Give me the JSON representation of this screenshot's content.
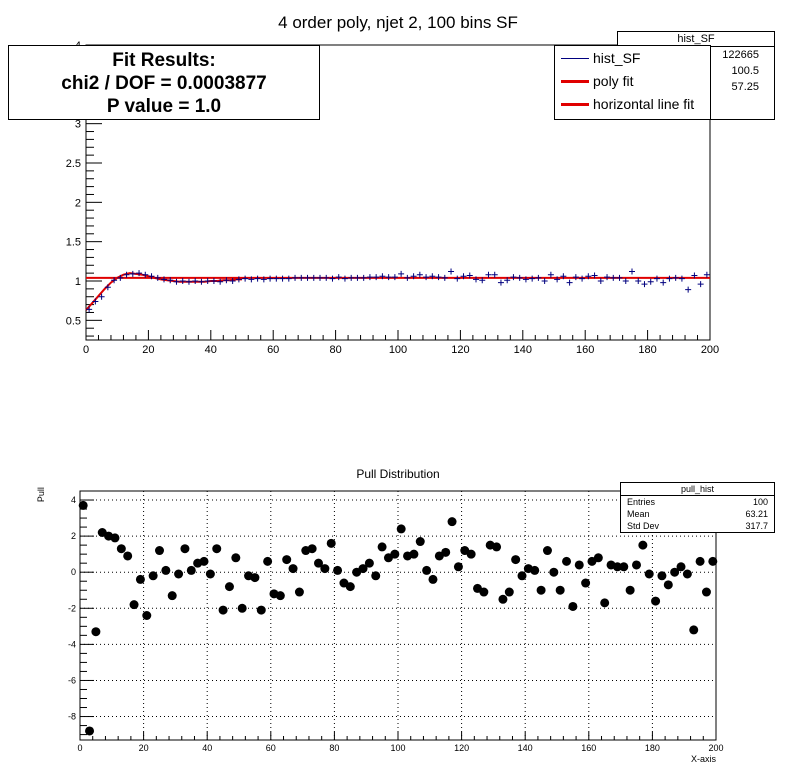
{
  "top_title": "4 order poly, njet 2, 100 bins SF",
  "fit_box": {
    "line1": "Fit Results:",
    "line2": "chi2 / DOF = 0.0003877",
    "line3": "P value = 1.0"
  },
  "legend": [
    {
      "label": "hist_SF",
      "color": "#00007f"
    },
    {
      "label": "poly fit",
      "color": "#e00000"
    },
    {
      "label": "horizontal line fit",
      "color": "#e00000"
    }
  ],
  "stats_top": {
    "title": "hist_SF",
    "values": [
      "122665",
      "100.5",
      "57.25"
    ]
  },
  "stats_pull": {
    "title": "pull_hist",
    "rows": [
      {
        "key": "Entries",
        "value": "100"
      },
      {
        "key": "Mean",
        "value": "63.21"
      },
      {
        "key": "Std Dev",
        "value": "317.7"
      }
    ]
  },
  "bottom_title": "Pull Distribution",
  "colors": {
    "hist": "#00007f",
    "fit": "#e00000",
    "pull": "#000000"
  },
  "chart_data": [
    {
      "type": "scatter",
      "title": "4 order poly, njet 2, 100 bins SF",
      "xlim": [
        0,
        200
      ],
      "ylim": [
        0.25,
        4
      ],
      "x_ticks": [
        "0",
        "20",
        "40",
        "60",
        "80",
        "100",
        "120",
        "140",
        "160",
        "180",
        "200"
      ],
      "y_ticks": [
        "0.5",
        "1",
        "1.5",
        "2",
        "2.5",
        "3",
        "3.5",
        "4"
      ],
      "series": [
        {
          "name": "hist_SF",
          "x": [
            1,
            3,
            5,
            7,
            9,
            11,
            13,
            15,
            17,
            19,
            21,
            23,
            25,
            27,
            29,
            31,
            33,
            35,
            37,
            39,
            41,
            43,
            45,
            47,
            49,
            51,
            53,
            55,
            57,
            59,
            61,
            63,
            65,
            67,
            69,
            71,
            73,
            75,
            77,
            79,
            81,
            83,
            85,
            87,
            89,
            91,
            93,
            95,
            97,
            99,
            101,
            103,
            105,
            107,
            109,
            111,
            113,
            115,
            117,
            119,
            121,
            123,
            125,
            127,
            129,
            131,
            133,
            135,
            137,
            139,
            141,
            143,
            145,
            147,
            149,
            151,
            153,
            155,
            157,
            159,
            161,
            163,
            165,
            167,
            169,
            171,
            173,
            175,
            177,
            179,
            181,
            183,
            185,
            187,
            189,
            191,
            193,
            195,
            197,
            199
          ],
          "y": [
            0.64,
            0.74,
            0.8,
            0.92,
            1.01,
            1.04,
            1.08,
            1.09,
            1.1,
            1.08,
            1.06,
            1.04,
            1.02,
            1.01,
            0.99,
            1.0,
            0.99,
            1.0,
            0.99,
            1.0,
            1.0,
            0.99,
            1.01,
            1.0,
            1.02,
            1.03,
            1.02,
            1.03,
            1.02,
            1.03,
            1.03,
            1.03,
            1.03,
            1.04,
            1.04,
            1.04,
            1.04,
            1.04,
            1.04,
            1.03,
            1.05,
            1.03,
            1.04,
            1.04,
            1.04,
            1.05,
            1.05,
            1.06,
            1.05,
            1.05,
            1.09,
            1.04,
            1.06,
            1.08,
            1.05,
            1.06,
            1.05,
            1.04,
            1.12,
            1.03,
            1.06,
            1.07,
            1.02,
            1.01,
            1.08,
            1.08,
            0.98,
            1.01,
            1.05,
            1.04,
            1.02,
            1.03,
            1.04,
            1.0,
            1.08,
            1.02,
            1.06,
            0.98,
            1.05,
            1.03,
            1.06,
            1.07,
            1.0,
            1.05,
            1.04,
            1.04,
            1.0,
            1.12,
            1.0,
            0.96,
            0.99,
            1.03,
            0.98,
            1.03,
            1.04,
            1.03,
            0.89,
            1.07,
            0.96,
            1.08
          ]
        },
        {
          "name": "poly fit",
          "x": [
            0,
            2,
            4,
            6,
            8,
            10,
            12,
            14,
            16,
            18,
            20,
            22,
            24,
            26,
            28,
            30,
            32,
            34,
            36,
            38,
            40,
            42,
            44,
            46,
            48,
            50
          ],
          "y": [
            0.63,
            0.72,
            0.81,
            0.9,
            0.98,
            1.04,
            1.08,
            1.1,
            1.09,
            1.08,
            1.06,
            1.04,
            1.02,
            1.01,
            1.0,
            0.99,
            0.99,
            0.99,
            0.99,
            0.99,
            1.0,
            1.0,
            1.01,
            1.01,
            1.02,
            1.02
          ]
        },
        {
          "name": "horizontal line fit",
          "x": [
            0,
            200
          ],
          "y": [
            1.04,
            1.04
          ]
        }
      ]
    },
    {
      "type": "scatter",
      "title": "Pull Distribution",
      "xlabel": "X-axis",
      "ylabel": "Pull",
      "xlim": [
        0,
        200
      ],
      "ylim": [
        -9.3,
        4.5
      ],
      "x_ticks": [
        "0",
        "20",
        "40",
        "60",
        "80",
        "100",
        "120",
        "140",
        "160",
        "180",
        "200"
      ],
      "y_ticks": [
        "-8",
        "-6",
        "-4",
        "-2",
        "0",
        "2",
        "4"
      ],
      "grid": true,
      "series": [
        {
          "name": "pull_hist",
          "x": [
            1,
            3,
            5,
            7,
            9,
            11,
            13,
            15,
            17,
            19,
            21,
            23,
            25,
            27,
            29,
            31,
            33,
            35,
            37,
            39,
            41,
            43,
            45,
            47,
            49,
            51,
            53,
            55,
            57,
            59,
            61,
            63,
            65,
            67,
            69,
            71,
            73,
            75,
            77,
            79,
            81,
            83,
            85,
            87,
            89,
            91,
            93,
            95,
            97,
            99,
            101,
            103,
            105,
            107,
            109,
            111,
            113,
            115,
            117,
            119,
            121,
            123,
            125,
            127,
            129,
            131,
            133,
            135,
            137,
            139,
            141,
            143,
            145,
            147,
            149,
            151,
            153,
            155,
            157,
            159,
            161,
            163,
            165,
            167,
            169,
            171,
            173,
            175,
            177,
            179,
            181,
            183,
            185,
            187,
            189,
            191,
            193,
            195,
            197,
            199
          ],
          "y": [
            3.7,
            -8.8,
            -3.3,
            2.2,
            2.0,
            1.9,
            1.3,
            0.9,
            -1.8,
            -0.4,
            -2.4,
            -0.2,
            1.2,
            0.1,
            -1.3,
            -0.1,
            1.3,
            0.1,
            0.5,
            0.6,
            -0.1,
            1.3,
            -2.1,
            -0.8,
            0.8,
            -2.0,
            -0.2,
            -0.3,
            -2.1,
            0.6,
            -1.2,
            -1.3,
            0.7,
            0.2,
            -1.1,
            1.2,
            1.3,
            0.5,
            0.2,
            1.6,
            0.1,
            -0.6,
            -0.8,
            0.0,
            0.2,
            0.5,
            -0.2,
            1.4,
            0.8,
            1.0,
            2.4,
            0.9,
            1.0,
            1.7,
            0.1,
            -0.4,
            0.9,
            1.1,
            2.8,
            0.3,
            1.2,
            1.0,
            -0.9,
            -1.1,
            1.5,
            1.4,
            -1.5,
            -1.1,
            0.7,
            -0.2,
            0.2,
            0.1,
            -1.0,
            1.2,
            0.0,
            -1.0,
            0.6,
            -1.9,
            0.4,
            -0.6,
            0.6,
            0.8,
            -1.7,
            0.4,
            0.3,
            0.3,
            -1.0,
            0.4,
            1.5,
            -0.1,
            -1.6,
            -0.2,
            -0.7,
            0.0,
            0.3,
            -0.1,
            -3.2,
            0.6,
            -1.1,
            0.6
          ]
        }
      ]
    }
  ]
}
